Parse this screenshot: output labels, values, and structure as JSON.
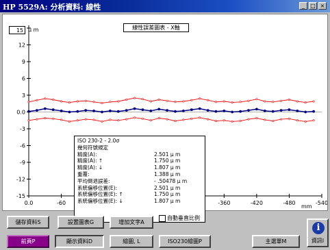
{
  "window": {
    "title": "HP 5529A: 分析資料: 線性",
    "controls": [
      "_",
      "□",
      "×"
    ]
  },
  "chart": {
    "caption": "線性誤差圖表 - X軸",
    "y_top_value": "15",
    "y_unit": "μ m",
    "x_unit": "mm"
  },
  "chart_data": {
    "type": "line",
    "xlim": [
      0.0,
      -540
    ],
    "ylim": [
      -15,
      15
    ],
    "x_ticks": [
      "0.0",
      "-60",
      "-120",
      "-180",
      "-240",
      "-300",
      "-360",
      "-420",
      "-480",
      "-540"
    ],
    "y_ticks": [
      "15",
      "12",
      "9",
      "6",
      "3",
      "0.0",
      "-3",
      "-6",
      "-9",
      "-12",
      "-15"
    ],
    "grid": false,
    "x": [
      0,
      -15,
      -30,
      -45,
      -60,
      -75,
      -90,
      -105,
      -120,
      -135,
      -150,
      -165,
      -180,
      -195,
      -210,
      -225,
      -240,
      -255,
      -270,
      -285,
      -300,
      -315,
      -330,
      -345,
      -360,
      -375,
      -390,
      -405,
      -420,
      -435,
      -450,
      -465,
      -480,
      -495,
      -510,
      -525
    ],
    "series": [
      {
        "color": "#000080",
        "values": [
          0.1,
          0.3,
          0.6,
          0.4,
          0.2,
          0.0,
          0.1,
          0.3,
          0.2,
          0.0,
          0.2,
          0.1,
          0.3,
          0.6,
          0.4,
          0.2,
          0.5,
          0.3,
          0.1,
          0.2,
          0.4,
          0.6,
          0.3,
          0.1,
          0.2,
          0.0,
          0.1,
          0.3,
          0.5,
          0.2,
          0.1,
          0.3,
          0.4,
          0.2,
          0.0,
          0.1
        ]
      },
      {
        "color": "#ff0000",
        "values": [
          1.8,
          2.1,
          2.4,
          2.2,
          1.9,
          1.7,
          1.9,
          2.0,
          1.8,
          1.6,
          1.8,
          1.9,
          2.2,
          2.5,
          2.3,
          1.9,
          2.2,
          2.0,
          1.8,
          1.9,
          2.1,
          2.4,
          2.1,
          1.8,
          1.9,
          1.7,
          1.8,
          2.0,
          2.3,
          1.9,
          1.8,
          2.0,
          2.2,
          1.9,
          1.7,
          1.9
        ]
      },
      {
        "color": "#ff0000",
        "values": [
          -1.5,
          -1.3,
          -1.1,
          -1.2,
          -1.4,
          -1.7,
          -1.5,
          -1.3,
          -1.4,
          -1.7,
          -1.4,
          -1.5,
          -1.3,
          -1.0,
          -1.2,
          -1.5,
          -1.1,
          -1.3,
          -1.6,
          -1.4,
          -1.2,
          -1.0,
          -1.3,
          -1.6,
          -1.5,
          -1.7,
          -1.6,
          -1.3,
          -1.1,
          -1.4,
          -1.6,
          -1.3,
          -1.2,
          -1.5,
          -1.7,
          -1.5
        ]
      }
    ]
  },
  "legend": {
    "header": "ISO 230-2 - 2.0σ",
    "subheader": "幾何符號規定",
    "rows": [
      {
        "label": "精度(A):",
        "value": "2.501 μ m"
      },
      {
        "label": "精度(A): ↑",
        "value": "1.750 μ m"
      },
      {
        "label": "精度(A): ↓",
        "value": "1.807 μ m"
      },
      {
        "label": "重覆:",
        "value": "1.388 μ m"
      },
      {
        "label": "平均倒退誤差:",
        "value": "- .50478 μ m"
      },
      {
        "label": "系統偏移位置(E):",
        "value": "2.501 μ m"
      },
      {
        "label": "系統偏移位置(E): ↑",
        "value": "1.750 μ m"
      },
      {
        "label": "系統偏移位置(E): ↓",
        "value": "1.807 μ m"
      }
    ]
  },
  "toolbar": {
    "save_data": "儲存資料S",
    "chart_settings": "設置圖表G",
    "add_text": "增加文字A",
    "auto_scale": "自動垂直比例",
    "prev_page": "前頁P",
    "show_data": "顯示資料D",
    "plot": "繪圖, L",
    "iso230_plot": "ISO230繪圖P",
    "main_menu": "主選單M",
    "info": "資訊I"
  }
}
